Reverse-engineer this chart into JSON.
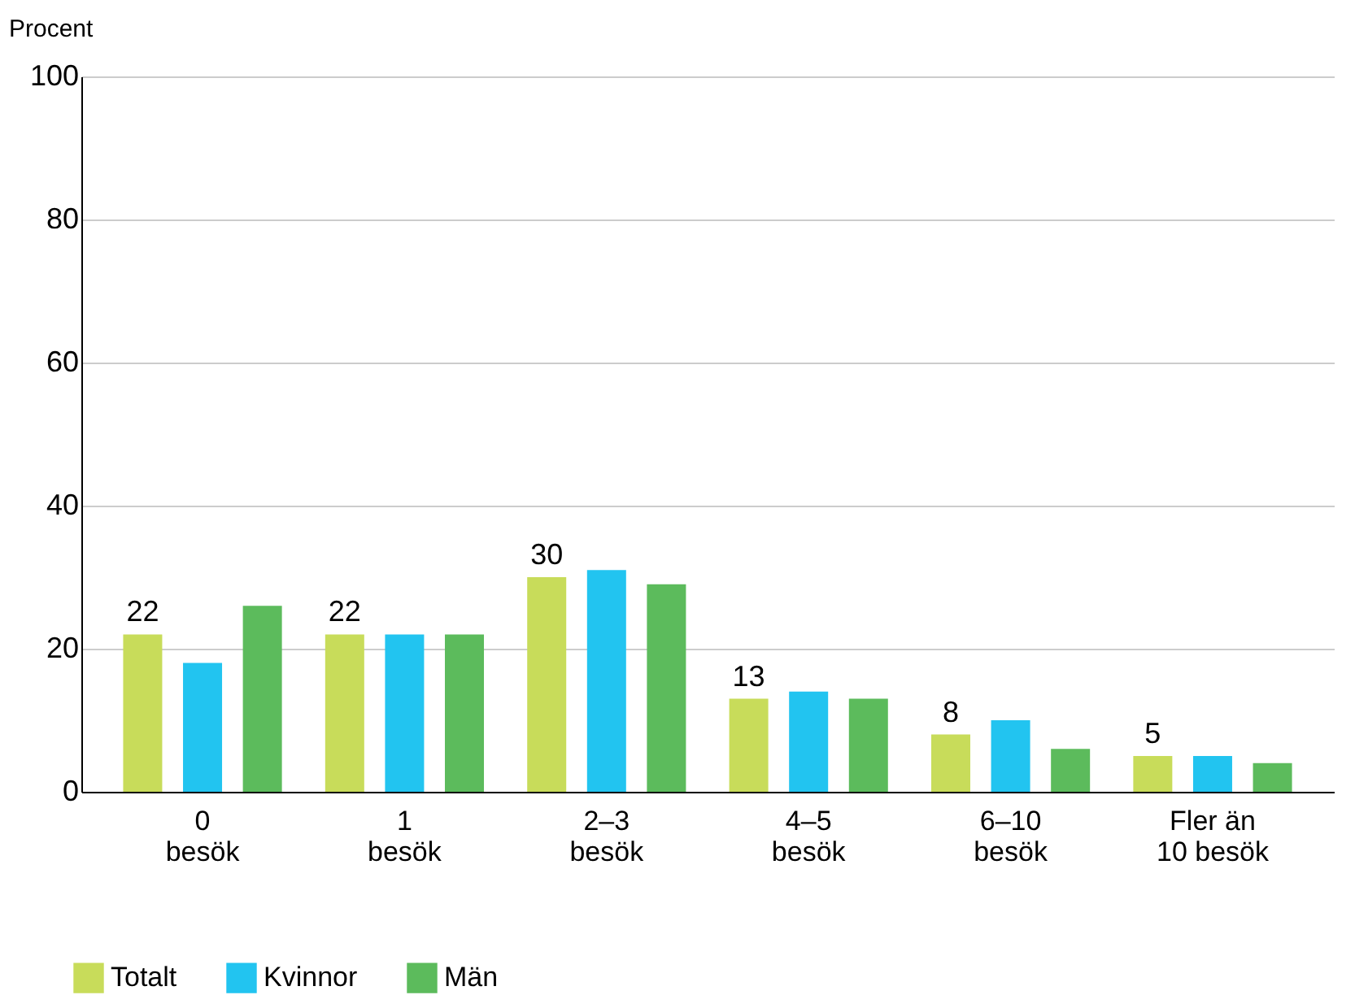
{
  "chart_data": {
    "type": "bar",
    "ylabel": "Procent",
    "categories": [
      "0\nbesök",
      "1\nbesök",
      "2–3\nbesök",
      "4–5\nbesök",
      "6–10\nbesök",
      "Fler än\n10 besök"
    ],
    "series": [
      {
        "name": "Totalt",
        "color": "#c8dc5a",
        "values": [
          22,
          22,
          30,
          13,
          8,
          5
        ],
        "value_labels": [
          "22",
          "22",
          "30",
          "13",
          "8",
          "5"
        ]
      },
      {
        "name": "Kvinnor",
        "color": "#22c4f0",
        "values": [
          18,
          22,
          31,
          14,
          10,
          5
        ]
      },
      {
        "name": "Män",
        "color": "#5cbb5c",
        "values": [
          26,
          22,
          29,
          13,
          6,
          4
        ]
      }
    ],
    "ylim": [
      0,
      100
    ],
    "yticks": [
      0,
      20,
      40,
      60,
      80,
      100
    ],
    "grid": "y",
    "legend": "bottom left"
  }
}
